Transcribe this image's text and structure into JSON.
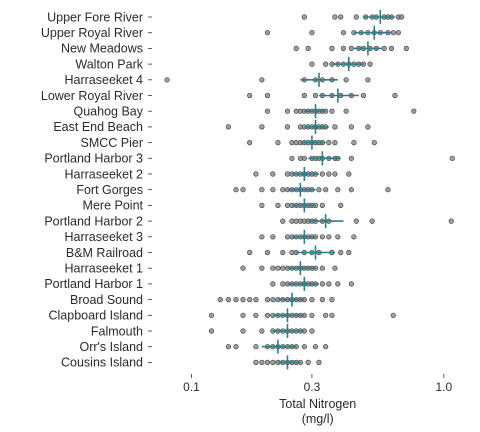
{
  "chart_data": {
    "type": "scatter",
    "title": "",
    "xlabel": [
      "Total Nitrogen",
      "(mg/l)"
    ],
    "ylabel": "",
    "x_scale": "log10",
    "xlim": [
      0.075,
      1.18
    ],
    "xticks": [
      {
        "value": 0.1,
        "label": "0.1"
      },
      {
        "value": 0.3,
        "label": "0.3"
      },
      {
        "value": 1.0,
        "label": "1.0"
      }
    ],
    "grid": false,
    "colors": {
      "points": "#7f7f7f",
      "summary": "#2e7d8c",
      "axis": "#333333",
      "text": "#2b2b2b"
    },
    "categories": [
      "Upper Fore River",
      "Upper Royal River",
      "New Meadows",
      "Walton Park",
      "Harraseeket 4",
      "Lower Royal River",
      "Quahog Bay",
      "East End Beach",
      "SMCC Pier",
      "Portland Harbor 3",
      "Harraseeket 2",
      "Fort Gorges",
      "Mere Point",
      "Portland Harbor 2",
      "Harraseeket 3",
      "B&M Railroad",
      "Harraseeket 1",
      "Portland Harbor 1",
      "Broad Sound",
      "Clapboard Island",
      "Falmouth",
      "Orr's Island",
      "Cousins Island"
    ],
    "summaries": [
      {
        "mean": 0.56,
        "lo": 0.48,
        "hi": 0.64
      },
      {
        "mean": 0.53,
        "lo": 0.44,
        "hi": 0.62
      },
      {
        "mean": 0.5,
        "lo": 0.44,
        "hi": 0.57
      },
      {
        "mean": 0.42,
        "lo": 0.36,
        "hi": 0.48
      },
      {
        "mean": 0.32,
        "lo": 0.27,
        "hi": 0.38
      },
      {
        "mean": 0.38,
        "lo": 0.32,
        "hi": 0.46
      },
      {
        "mean": 0.31,
        "lo": 0.28,
        "hi": 0.34
      },
      {
        "mean": 0.31,
        "lo": 0.28,
        "hi": 0.35
      },
      {
        "mean": 0.3,
        "lo": 0.27,
        "hi": 0.34
      },
      {
        "mean": 0.33,
        "lo": 0.29,
        "hi": 0.39
      },
      {
        "mean": 0.28,
        "lo": 0.25,
        "hi": 0.32
      },
      {
        "mean": 0.27,
        "lo": 0.24,
        "hi": 0.31
      },
      {
        "mean": 0.28,
        "lo": 0.25,
        "hi": 0.31
      },
      {
        "mean": 0.34,
        "lo": 0.29,
        "hi": 0.4
      },
      {
        "mean": 0.28,
        "lo": 0.25,
        "hi": 0.31
      },
      {
        "mean": 0.31,
        "lo": 0.26,
        "hi": 0.37
      },
      {
        "mean": 0.27,
        "lo": 0.24,
        "hi": 0.31
      },
      {
        "mean": 0.28,
        "lo": 0.24,
        "hi": 0.32
      },
      {
        "mean": 0.25,
        "lo": 0.22,
        "hi": 0.28
      },
      {
        "mean": 0.24,
        "lo": 0.21,
        "hi": 0.28
      },
      {
        "mean": 0.24,
        "lo": 0.21,
        "hi": 0.28
      },
      {
        "mean": 0.22,
        "lo": 0.19,
        "hi": 0.26
      },
      {
        "mean": 0.24,
        "lo": 0.22,
        "hi": 0.27
      }
    ],
    "observations": [
      [
        0.28,
        0.37,
        0.39,
        0.45,
        0.49,
        0.52,
        0.54,
        0.58,
        0.6,
        0.62,
        0.66,
        0.68
      ],
      [
        0.2,
        0.3,
        0.4,
        0.44,
        0.47,
        0.5,
        0.53,
        0.56,
        0.6,
        0.63,
        0.66
      ],
      [
        0.26,
        0.29,
        0.36,
        0.4,
        0.43,
        0.46,
        0.48,
        0.51,
        0.54,
        0.58,
        0.62,
        0.71
      ],
      [
        0.3,
        0.34,
        0.36,
        0.38,
        0.4,
        0.42,
        0.44,
        0.46,
        0.48,
        0.51
      ],
      [
        0.08,
        0.19,
        0.28,
        0.31,
        0.33,
        0.36,
        0.41,
        0.5
      ],
      [
        0.17,
        0.2,
        0.28,
        0.31,
        0.33,
        0.36,
        0.39,
        0.43,
        0.48,
        0.64
      ],
      [
        0.2,
        0.24,
        0.26,
        0.27,
        0.28,
        0.29,
        0.3,
        0.31,
        0.32,
        0.33,
        0.34,
        0.36,
        0.41,
        0.76
      ],
      [
        0.14,
        0.19,
        0.24,
        0.27,
        0.28,
        0.29,
        0.3,
        0.31,
        0.32,
        0.33,
        0.34,
        0.37,
        0.43,
        0.5
      ],
      [
        0.17,
        0.22,
        0.25,
        0.26,
        0.27,
        0.28,
        0.29,
        0.3,
        0.31,
        0.32,
        0.33,
        0.35,
        0.37,
        0.44,
        0.53
      ],
      [
        0.25,
        0.27,
        0.28,
        0.3,
        0.31,
        0.32,
        0.33,
        0.35,
        0.37,
        0.38,
        0.43,
        1.08
      ],
      [
        0.18,
        0.21,
        0.24,
        0.25,
        0.26,
        0.27,
        0.28,
        0.29,
        0.3,
        0.31,
        0.33,
        0.35,
        0.37,
        0.42
      ],
      [
        0.15,
        0.16,
        0.19,
        0.21,
        0.23,
        0.24,
        0.25,
        0.26,
        0.27,
        0.28,
        0.29,
        0.3,
        0.32,
        0.34,
        0.38,
        0.43,
        0.6
      ],
      [
        0.19,
        0.22,
        0.24,
        0.25,
        0.26,
        0.27,
        0.28,
        0.29,
        0.3,
        0.31,
        0.33,
        0.39
      ],
      [
        0.23,
        0.25,
        0.26,
        0.27,
        0.28,
        0.29,
        0.3,
        0.31,
        0.33,
        0.35,
        0.45,
        0.52,
        1.07
      ],
      [
        0.19,
        0.21,
        0.24,
        0.25,
        0.26,
        0.27,
        0.28,
        0.29,
        0.3,
        0.31,
        0.33,
        0.35,
        0.38,
        0.44
      ],
      [
        0.17,
        0.2,
        0.23,
        0.25,
        0.26,
        0.28,
        0.3,
        0.32,
        0.36,
        0.39,
        0.42
      ],
      [
        0.16,
        0.19,
        0.21,
        0.22,
        0.23,
        0.24,
        0.25,
        0.26,
        0.27,
        0.28,
        0.29,
        0.3,
        0.31,
        0.33,
        0.37
      ],
      [
        0.21,
        0.23,
        0.24,
        0.25,
        0.26,
        0.27,
        0.28,
        0.29,
        0.3,
        0.31,
        0.33,
        0.35,
        0.38,
        0.43
      ],
      [
        0.13,
        0.14,
        0.15,
        0.16,
        0.17,
        0.18,
        0.2,
        0.21,
        0.22,
        0.23,
        0.24,
        0.25,
        0.26,
        0.27,
        0.28,
        0.3,
        0.33,
        0.36
      ],
      [
        0.12,
        0.16,
        0.18,
        0.2,
        0.21,
        0.22,
        0.23,
        0.24,
        0.25,
        0.26,
        0.27,
        0.28,
        0.3,
        0.34,
        0.36,
        0.63
      ],
      [
        0.12,
        0.16,
        0.19,
        0.21,
        0.22,
        0.23,
        0.24,
        0.25,
        0.26,
        0.27,
        0.28,
        0.3
      ],
      [
        0.14,
        0.15,
        0.18,
        0.2,
        0.21,
        0.22,
        0.23,
        0.24,
        0.25,
        0.26,
        0.28,
        0.31,
        0.34
      ],
      [
        0.18,
        0.19,
        0.2,
        0.21,
        0.22,
        0.23,
        0.24,
        0.25,
        0.26,
        0.27,
        0.29,
        0.32
      ]
    ]
  }
}
